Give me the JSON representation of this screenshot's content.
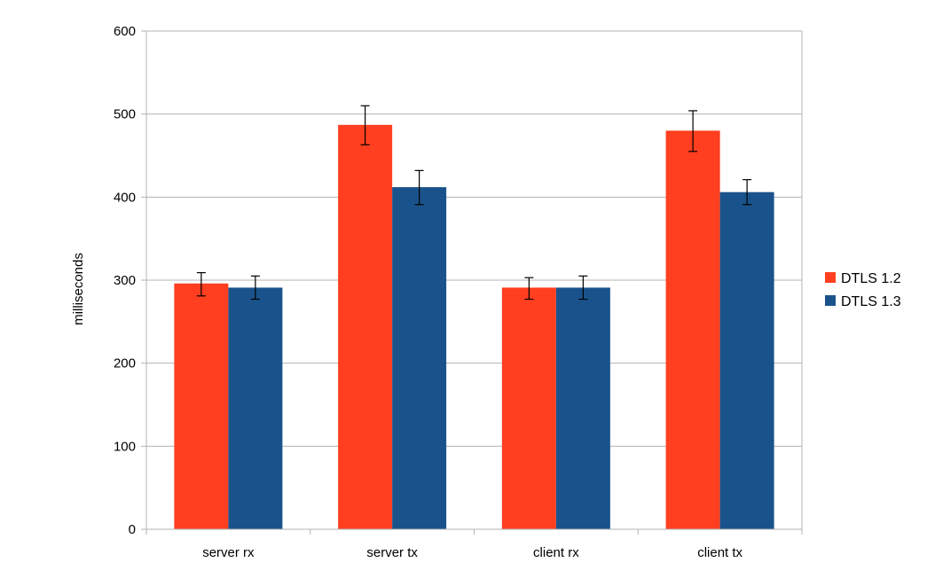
{
  "chart_data": {
    "type": "bar",
    "categories": [
      "server rx",
      "server  tx",
      "client rx",
      "client tx"
    ],
    "series": [
      {
        "name": "DTLS 1.2",
        "color": "#ff3f1f",
        "values": [
          296,
          487,
          291,
          480
        ],
        "error_low": [
          281,
          463,
          277,
          455
        ],
        "error_high": [
          309,
          510,
          303,
          504
        ]
      },
      {
        "name": "DTLS 1.3",
        "color": "#1a538c",
        "values": [
          291,
          412,
          291,
          406
        ],
        "error_low": [
          277,
          391,
          277,
          391
        ],
        "error_high": [
          305,
          432,
          305,
          421
        ]
      }
    ],
    "title": "",
    "xlabel": "",
    "ylabel": "milliseconds",
    "ylim": [
      0,
      600
    ],
    "yticks": [
      0,
      100,
      200,
      300,
      400,
      500,
      600
    ],
    "grid": true,
    "legend_position": "right"
  }
}
